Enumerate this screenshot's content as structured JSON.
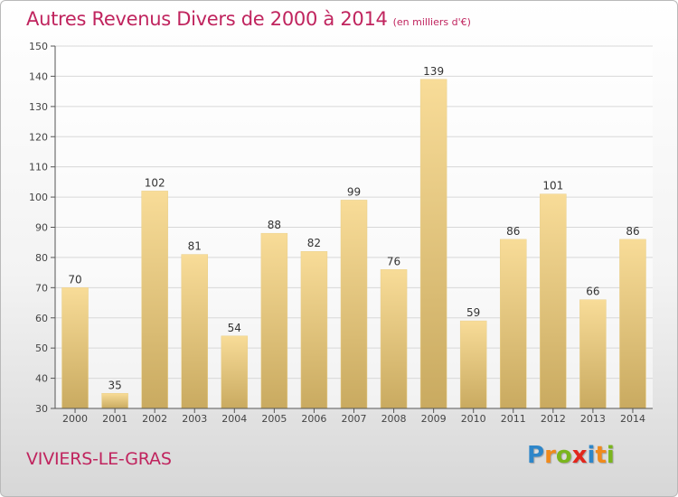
{
  "title": "Autres Revenus Divers de 2000 à 2014",
  "unit_note": "(en milliers d'€)",
  "commune": "VIVIERS-LE-GRAS",
  "brand": {
    "name": "Proxiti",
    "letters": [
      {
        "char": "P",
        "color": "#2e86c9"
      },
      {
        "char": "r",
        "color": "#f08a1c"
      },
      {
        "char": "o",
        "color": "#7ab51d"
      },
      {
        "char": "x",
        "color": "#e2261c"
      },
      {
        "char": "i",
        "color": "#2e86c9"
      },
      {
        "char": "t",
        "color": "#f08a1c"
      },
      {
        "char": "i",
        "color": "#7ab51d"
      }
    ]
  },
  "colors": {
    "title": "#c0245e",
    "bar_top": "#f8dc98",
    "bar_bottom": "#c9aa60",
    "grid": "#d8d8d8",
    "axis": "#555555"
  },
  "chart_data": {
    "type": "bar",
    "title": "Autres Revenus Divers de 2000 à 2014",
    "ylabel": "",
    "xlabel": "",
    "categories": [
      "2000",
      "2001",
      "2002",
      "2003",
      "2004",
      "2005",
      "2006",
      "2007",
      "2008",
      "2009",
      "2010",
      "2011",
      "2012",
      "2013",
      "2014"
    ],
    "values": [
      70,
      35,
      102,
      81,
      54,
      88,
      82,
      99,
      76,
      139,
      59,
      86,
      101,
      66,
      86
    ],
    "ylim": [
      30,
      150
    ],
    "yticks": [
      30,
      40,
      50,
      60,
      70,
      80,
      90,
      100,
      110,
      120,
      130,
      140,
      150
    ],
    "grid": true,
    "data_labels": true
  }
}
